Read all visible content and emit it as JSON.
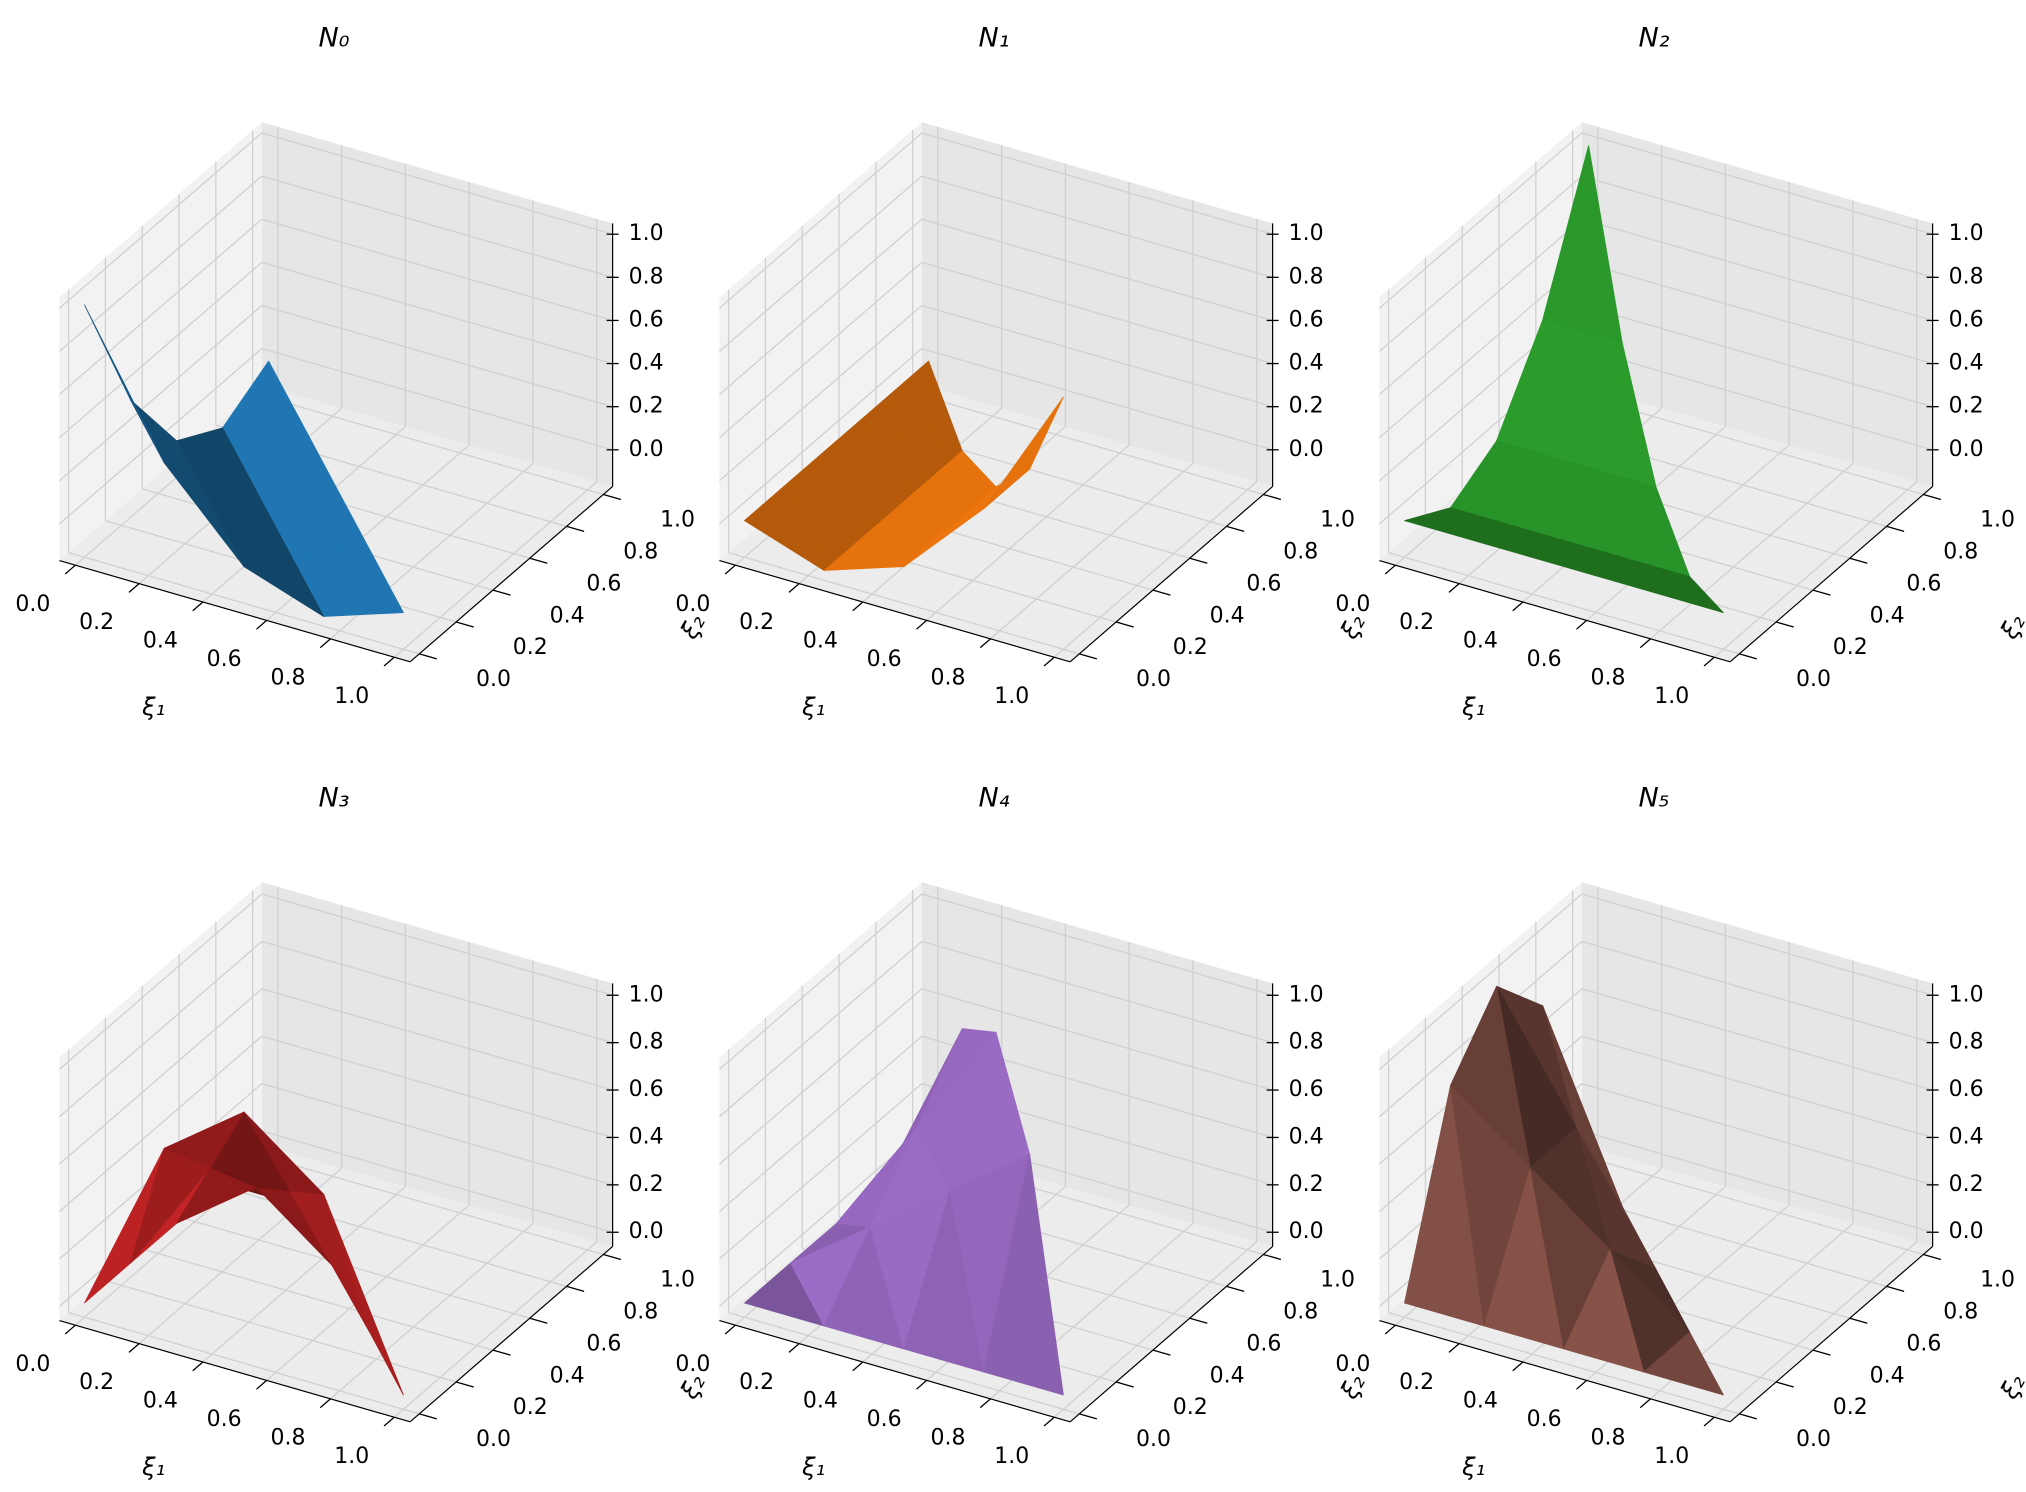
{
  "chart_data": [
    {
      "type": "surface",
      "title": "N₀",
      "xlabel": "ξ₁",
      "ylabel": "ξ₂",
      "color": "#1f77b4",
      "x": [
        0,
        0.25,
        0.5,
        0.75,
        1,
        0,
        0.25,
        0.5,
        0.75,
        0,
        0.25,
        0.5,
        0,
        0.25,
        0
      ],
      "y": [
        0,
        0,
        0,
        0,
        0,
        0.25,
        0.25,
        0.25,
        0.25,
        0.5,
        0.5,
        0.5,
        0.75,
        0.75,
        1
      ],
      "z": [
        1,
        0.375,
        0,
        -0.125,
        0,
        0.375,
        0,
        -0.125,
        0,
        0,
        -0.125,
        0,
        -0.125,
        0,
        0
      ],
      "xlim": [
        -0.05,
        1.05
      ],
      "ylim": [
        -0.05,
        1.05
      ],
      "zlim": [
        -0.17,
        1.05
      ],
      "xticks": [
        {
          "value": 0,
          "label": "0.0"
        },
        {
          "value": 0.2,
          "label": "0.2"
        },
        {
          "value": 0.4,
          "label": "0.4"
        },
        {
          "value": 0.6,
          "label": "0.6"
        },
        {
          "value": 0.8,
          "label": "0.8"
        },
        {
          "value": 1,
          "label": "1.0"
        }
      ],
      "yticks": [
        {
          "value": 0,
          "label": "0.0"
        },
        {
          "value": 0.2,
          "label": "0.2"
        },
        {
          "value": 0.4,
          "label": "0.4"
        },
        {
          "value": 0.6,
          "label": "0.6"
        },
        {
          "value": 0.8,
          "label": "0.8"
        },
        {
          "value": 1,
          "label": "1.0"
        }
      ],
      "zticks": [
        {
          "value": 0,
          "label": "0.0"
        },
        {
          "value": 0.2,
          "label": "0.2"
        },
        {
          "value": 0.4,
          "label": "0.4"
        },
        {
          "value": 0.6,
          "label": "0.6"
        },
        {
          "value": 0.8,
          "label": "0.8"
        },
        {
          "value": 1,
          "label": "1.0"
        }
      ],
      "grid": true
    },
    {
      "type": "surface",
      "title": "N₁",
      "xlabel": "ξ₁",
      "ylabel": "ξ₂",
      "color": "#ff7f0e",
      "x": [
        0,
        0.25,
        0.5,
        0.75,
        1,
        0,
        0.25,
        0.5,
        0.75,
        0,
        0.25,
        0.5,
        0,
        0.25,
        0
      ],
      "y": [
        0,
        0,
        0,
        0,
        0,
        0.25,
        0.25,
        0.25,
        0.25,
        0.5,
        0.5,
        0.5,
        0.75,
        0.75,
        1
      ],
      "z": [
        0,
        -0.125,
        0,
        0.375,
        1,
        0,
        -0.125,
        0,
        0.375,
        0,
        -0.125,
        0,
        0,
        -0.125,
        0
      ],
      "xlim": [
        -0.05,
        1.05
      ],
      "ylim": [
        -0.05,
        1.05
      ],
      "zlim": [
        -0.17,
        1.05
      ],
      "xticks": [
        {
          "value": 0,
          "label": "0.0"
        },
        {
          "value": 0.2,
          "label": "0.2"
        },
        {
          "value": 0.4,
          "label": "0.4"
        },
        {
          "value": 0.6,
          "label": "0.6"
        },
        {
          "value": 0.8,
          "label": "0.8"
        },
        {
          "value": 1,
          "label": "1.0"
        }
      ],
      "yticks": [
        {
          "value": 0,
          "label": "0.0"
        },
        {
          "value": 0.2,
          "label": "0.2"
        },
        {
          "value": 0.4,
          "label": "0.4"
        },
        {
          "value": 0.6,
          "label": "0.6"
        },
        {
          "value": 0.8,
          "label": "0.8"
        },
        {
          "value": 1,
          "label": "1.0"
        }
      ],
      "zticks": [
        {
          "value": 0,
          "label": "0.0"
        },
        {
          "value": 0.2,
          "label": "0.2"
        },
        {
          "value": 0.4,
          "label": "0.4"
        },
        {
          "value": 0.6,
          "label": "0.6"
        },
        {
          "value": 0.8,
          "label": "0.8"
        },
        {
          "value": 1,
          "label": "1.0"
        }
      ],
      "grid": true
    },
    {
      "type": "surface",
      "title": "N₂",
      "xlabel": "ξ₁",
      "ylabel": "ξ₂",
      "color": "#2ca02c",
      "x": [
        0,
        0.25,
        0.5,
        0.75,
        1,
        0,
        0.25,
        0.5,
        0.75,
        0,
        0.25,
        0.5,
        0,
        0.25,
        0
      ],
      "y": [
        0,
        0,
        0,
        0,
        0,
        0.25,
        0.25,
        0.25,
        0.25,
        0.5,
        0.5,
        0.5,
        0.75,
        0.75,
        1
      ],
      "z": [
        0,
        0,
        0,
        0,
        0,
        -0.125,
        -0.125,
        -0.125,
        -0.125,
        0,
        0,
        0,
        0.375,
        0.375,
        1
      ],
      "xlim": [
        -0.05,
        1.05
      ],
      "ylim": [
        -0.05,
        1.05
      ],
      "zlim": [
        -0.17,
        1.05
      ],
      "xticks": [
        {
          "value": 0,
          "label": "0.0"
        },
        {
          "value": 0.2,
          "label": "0.2"
        },
        {
          "value": 0.4,
          "label": "0.4"
        },
        {
          "value": 0.6,
          "label": "0.6"
        },
        {
          "value": 0.8,
          "label": "0.8"
        },
        {
          "value": 1,
          "label": "1.0"
        }
      ],
      "yticks": [
        {
          "value": 0,
          "label": "0.0"
        },
        {
          "value": 0.2,
          "label": "0.2"
        },
        {
          "value": 0.4,
          "label": "0.4"
        },
        {
          "value": 0.6,
          "label": "0.6"
        },
        {
          "value": 0.8,
          "label": "0.8"
        },
        {
          "value": 1,
          "label": "1.0"
        }
      ],
      "zticks": [
        {
          "value": 0,
          "label": "0.0"
        },
        {
          "value": 0.2,
          "label": "0.2"
        },
        {
          "value": 0.4,
          "label": "0.4"
        },
        {
          "value": 0.6,
          "label": "0.6"
        },
        {
          "value": 0.8,
          "label": "0.8"
        },
        {
          "value": 1,
          "label": "1.0"
        }
      ],
      "grid": true
    },
    {
      "type": "surface",
      "title": "N₃",
      "xlabel": "ξ₁",
      "ylabel": "ξ₂",
      "color": "#d62728",
      "x": [
        0,
        0.25,
        0.5,
        0.75,
        1,
        0,
        0.25,
        0.5,
        0.75,
        0,
        0.25,
        0.5,
        0,
        0.25,
        0
      ],
      "y": [
        0,
        0,
        0,
        0,
        0,
        0.25,
        0.25,
        0.25,
        0.25,
        0.5,
        0.5,
        0.5,
        0.75,
        0.75,
        1
      ],
      "z": [
        0,
        0.75,
        1,
        0.75,
        0,
        0,
        0.5,
        0.5,
        0,
        0,
        0.25,
        0,
        0,
        0,
        0
      ],
      "xlim": [
        -0.05,
        1.05
      ],
      "ylim": [
        -0.05,
        1.05
      ],
      "zlim": [
        -0.06,
        1.05
      ],
      "xticks": [
        {
          "value": 0,
          "label": "0.0"
        },
        {
          "value": 0.2,
          "label": "0.2"
        },
        {
          "value": 0.4,
          "label": "0.4"
        },
        {
          "value": 0.6,
          "label": "0.6"
        },
        {
          "value": 0.8,
          "label": "0.8"
        },
        {
          "value": 1,
          "label": "1.0"
        }
      ],
      "yticks": [
        {
          "value": 0,
          "label": "0.0"
        },
        {
          "value": 0.2,
          "label": "0.2"
        },
        {
          "value": 0.4,
          "label": "0.4"
        },
        {
          "value": 0.6,
          "label": "0.6"
        },
        {
          "value": 0.8,
          "label": "0.8"
        },
        {
          "value": 1,
          "label": "1.0"
        }
      ],
      "zticks": [
        {
          "value": 0,
          "label": "0.0"
        },
        {
          "value": 0.2,
          "label": "0.2"
        },
        {
          "value": 0.4,
          "label": "0.4"
        },
        {
          "value": 0.6,
          "label": "0.6"
        },
        {
          "value": 0.8,
          "label": "0.8"
        },
        {
          "value": 1,
          "label": "1.0"
        }
      ],
      "grid": true
    },
    {
      "type": "surface",
      "title": "N₄",
      "xlabel": "ξ₁",
      "ylabel": "ξ₂",
      "color": "#9467bd",
      "x": [
        0,
        0.25,
        0.5,
        0.75,
        1,
        0,
        0.25,
        0.5,
        0.75,
        0,
        0.25,
        0.5,
        0,
        0.25,
        0
      ],
      "y": [
        0,
        0,
        0,
        0,
        0,
        0.25,
        0.25,
        0.25,
        0.25,
        0.5,
        0.5,
        0.5,
        0.75,
        0.75,
        1
      ],
      "z": [
        0,
        0,
        0,
        0,
        0,
        0,
        0.25,
        0.5,
        0.75,
        0,
        0.5,
        1,
        0,
        0.75,
        0
      ],
      "xlim": [
        -0.05,
        1.05
      ],
      "ylim": [
        -0.05,
        1.05
      ],
      "zlim": [
        -0.06,
        1.05
      ],
      "xticks": [
        {
          "value": 0,
          "label": "0.0"
        },
        {
          "value": 0.2,
          "label": "0.2"
        },
        {
          "value": 0.4,
          "label": "0.4"
        },
        {
          "value": 0.6,
          "label": "0.6"
        },
        {
          "value": 0.8,
          "label": "0.8"
        },
        {
          "value": 1,
          "label": "1.0"
        }
      ],
      "yticks": [
        {
          "value": 0,
          "label": "0.0"
        },
        {
          "value": 0.2,
          "label": "0.2"
        },
        {
          "value": 0.4,
          "label": "0.4"
        },
        {
          "value": 0.6,
          "label": "0.6"
        },
        {
          "value": 0.8,
          "label": "0.8"
        },
        {
          "value": 1,
          "label": "1.0"
        }
      ],
      "zticks": [
        {
          "value": 0,
          "label": "0.0"
        },
        {
          "value": 0.2,
          "label": "0.2"
        },
        {
          "value": 0.4,
          "label": "0.4"
        },
        {
          "value": 0.6,
          "label": "0.6"
        },
        {
          "value": 0.8,
          "label": "0.8"
        },
        {
          "value": 1,
          "label": "1.0"
        }
      ],
      "grid": true
    },
    {
      "type": "surface",
      "title": "N₅",
      "xlabel": "ξ₁",
      "ylabel": "ξ₂",
      "color": "#8c564b",
      "x": [
        0,
        0.25,
        0.5,
        0.75,
        1,
        0,
        0.25,
        0.5,
        0.75,
        0,
        0.25,
        0.5,
        0,
        0.25,
        0
      ],
      "y": [
        0,
        0,
        0,
        0,
        0,
        0.25,
        0.25,
        0.25,
        0.25,
        0.5,
        0.5,
        0.5,
        0.75,
        0.75,
        1
      ],
      "z": [
        0,
        0,
        0,
        0,
        0,
        0.75,
        0.5,
        0.25,
        0,
        1,
        0.5,
        0,
        0.75,
        0,
        0
      ],
      "xlim": [
        -0.05,
        1.05
      ],
      "ylim": [
        -0.05,
        1.05
      ],
      "zlim": [
        -0.06,
        1.05
      ],
      "xticks": [
        {
          "value": 0,
          "label": "0.0"
        },
        {
          "value": 0.2,
          "label": "0.2"
        },
        {
          "value": 0.4,
          "label": "0.4"
        },
        {
          "value": 0.6,
          "label": "0.6"
        },
        {
          "value": 0.8,
          "label": "0.8"
        },
        {
          "value": 1,
          "label": "1.0"
        }
      ],
      "yticks": [
        {
          "value": 0,
          "label": "0.0"
        },
        {
          "value": 0.2,
          "label": "0.2"
        },
        {
          "value": 0.4,
          "label": "0.4"
        },
        {
          "value": 0.6,
          "label": "0.6"
        },
        {
          "value": 0.8,
          "label": "0.8"
        },
        {
          "value": 1,
          "label": "1.0"
        }
      ],
      "zticks": [
        {
          "value": 0,
          "label": "0.0"
        },
        {
          "value": 0.2,
          "label": "0.2"
        },
        {
          "value": 0.4,
          "label": "0.4"
        },
        {
          "value": 0.6,
          "label": "0.6"
        },
        {
          "value": 0.8,
          "label": "0.8"
        },
        {
          "value": 1,
          "label": "1.0"
        }
      ],
      "grid": true
    }
  ]
}
